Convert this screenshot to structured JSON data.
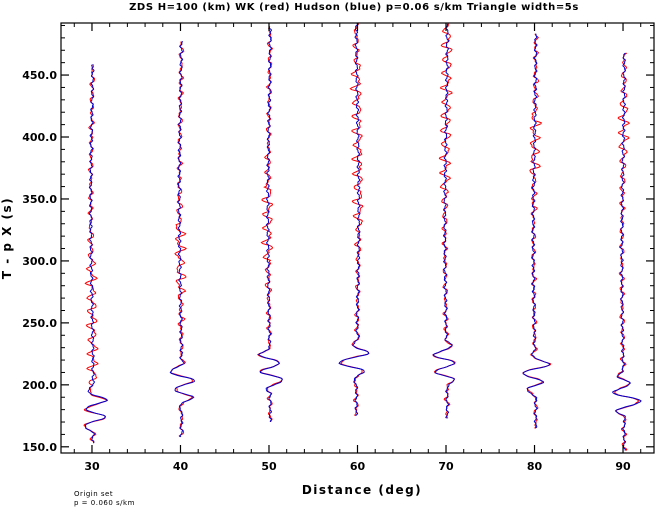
{
  "chart_data": {
    "type": "line",
    "title": "ZDS H=100 (km) WK (red) Hudson (blue) p=0.06 s/km Triangle width=5s",
    "xlabel": "Distance (deg)",
    "ylabel": "T - p X (s)",
    "xlim": [
      26.5,
      93.5
    ],
    "ylim": [
      145,
      492
    ],
    "xticks": [
      30,
      40,
      50,
      60,
      70,
      80,
      90
    ],
    "xtick_labels": [
      "30",
      "40",
      "50",
      "60",
      "70",
      "80",
      "90"
    ],
    "yticks": [
      150,
      200,
      250,
      300,
      350,
      400,
      450
    ],
    "ytick_labels": [
      "150.0",
      "200.0",
      "250.0",
      "300.0",
      "350.0",
      "400.0",
      "450.0"
    ],
    "series": [
      {
        "name": "WK",
        "color": "#ff0000"
      },
      {
        "name": "Hudson",
        "color": "#0000cc"
      }
    ],
    "traces": [
      {
        "distance": 30,
        "start": 153,
        "end": 459,
        "wk_active": [
          200,
          300
        ],
        "hudson_burst": [
          160,
          200
        ]
      },
      {
        "distance": 40,
        "start": 158,
        "end": 478,
        "wk_active": [
          275,
          330
        ],
        "hudson_burst": [
          180,
          220
        ]
      },
      {
        "distance": 50,
        "start": 170,
        "end": 490,
        "wk_active": [
          300,
          360
        ],
        "hudson_burst": [
          193,
          232
        ]
      },
      {
        "distance": 60,
        "start": 175,
        "end": 492,
        "wk_active": [
          330,
          460
        ],
        "hudson_burst": [
          200,
          240
        ]
      },
      {
        "distance": 70,
        "start": 173,
        "end": 492,
        "wk_active": [
          355,
          490
        ],
        "hudson_burst": [
          198,
          236
        ]
      },
      {
        "distance": 80,
        "start": 165,
        "end": 484,
        "wk_active": [
          370,
          420
        ],
        "hudson_burst": [
          188,
          228
        ]
      },
      {
        "distance": 90,
        "start": 147,
        "end": 468,
        "wk_active": [
          385,
          430
        ],
        "hudson_burst": [
          170,
          212
        ]
      }
    ],
    "grid": false
  },
  "footer": {
    "line1": "Origin set",
    "line2": "p = 0.060 s/km"
  }
}
